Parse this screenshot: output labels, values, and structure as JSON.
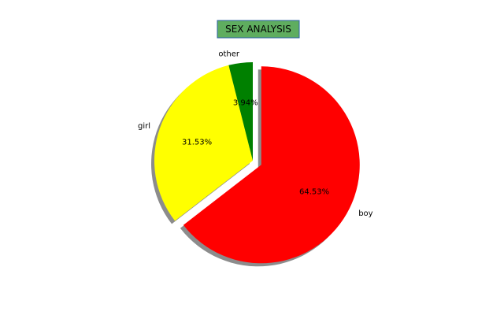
{
  "chart_data": {
    "type": "pie",
    "title": "SEX ANALYSIS",
    "startangle": 90,
    "counterclock": false,
    "shadow": true,
    "slices": [
      {
        "label": "boy",
        "value": 64.53,
        "pct_text": "64.53%",
        "color": "#ff0000",
        "explode": true
      },
      {
        "label": "girl",
        "value": 31.53,
        "pct_text": "31.53%",
        "color": "#ffff00",
        "explode": false
      },
      {
        "label": "other",
        "value": 3.94,
        "pct_text": "3.94%",
        "color": "#008000",
        "explode": false
      }
    ]
  }
}
